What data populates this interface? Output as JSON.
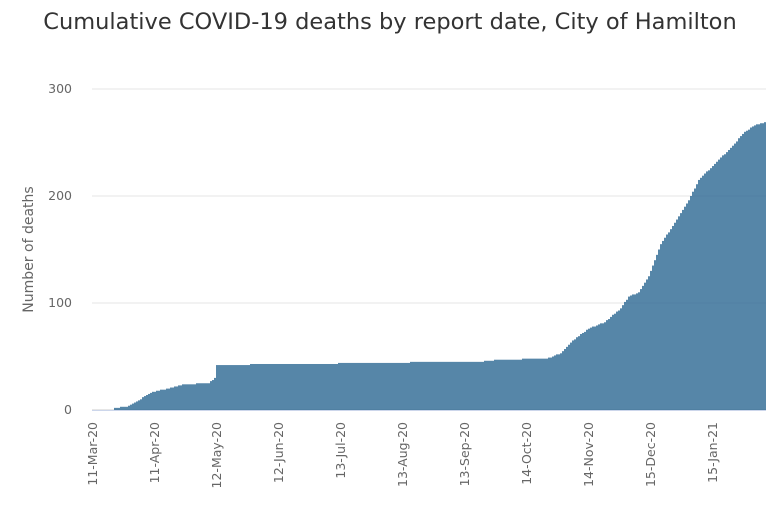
{
  "chart_data": {
    "type": "bar",
    "title": "Cumulative COVID-19 deaths by report date, City of Hamilton",
    "xlabel": "",
    "ylabel": "Number of deaths",
    "ylim": [
      0,
      300
    ],
    "yticks": [
      0,
      100,
      200,
      300
    ],
    "grid": true,
    "bar_color": "#1f5e8c",
    "x_start_date": "2020-03-11",
    "x_end_date": "2021-02-10",
    "xtick_labels": [
      "11-Mar-20",
      "11-Apr-20",
      "12-May-20",
      "12-Jun-20",
      "13-Jul-20",
      "13-Aug-20",
      "13-Sep-20",
      "14-Oct-20",
      "14-Nov-20",
      "15-Dec-20",
      "15-Jan-21"
    ],
    "key_points": [
      [
        "2020-03-11",
        0
      ],
      [
        "2020-03-21",
        0
      ],
      [
        "2020-03-22",
        2
      ],
      [
        "2020-03-28",
        3
      ],
      [
        "2020-04-02",
        8
      ],
      [
        "2020-04-08",
        15
      ],
      [
        "2020-04-12",
        18
      ],
      [
        "2020-04-18",
        20
      ],
      [
        "2020-04-25",
        24
      ],
      [
        "2020-05-08",
        25
      ],
      [
        "2020-05-11",
        30
      ],
      [
        "2020-05-12",
        42
      ],
      [
        "2020-06-15",
        43
      ],
      [
        "2020-07-10",
        43
      ],
      [
        "2020-07-13",
        44
      ],
      [
        "2020-09-20",
        45
      ],
      [
        "2020-09-30",
        47
      ],
      [
        "2020-10-24",
        48
      ],
      [
        "2020-10-31",
        53
      ],
      [
        "2020-11-06",
        65
      ],
      [
        "2020-11-14",
        76
      ],
      [
        "2020-11-22",
        82
      ],
      [
        "2020-11-30",
        95
      ],
      [
        "2020-12-04",
        106
      ],
      [
        "2020-12-09",
        110
      ],
      [
        "2020-12-14",
        125
      ],
      [
        "2020-12-17",
        140
      ],
      [
        "2020-12-20",
        155
      ],
      [
        "2020-12-26",
        172
      ],
      [
        "2021-01-03",
        196
      ],
      [
        "2021-01-08",
        215
      ],
      [
        "2021-01-16",
        230
      ],
      [
        "2021-01-24",
        245
      ],
      [
        "2021-01-31",
        260
      ],
      [
        "2021-02-05",
        266
      ],
      [
        "2021-02-10",
        269
      ]
    ]
  }
}
